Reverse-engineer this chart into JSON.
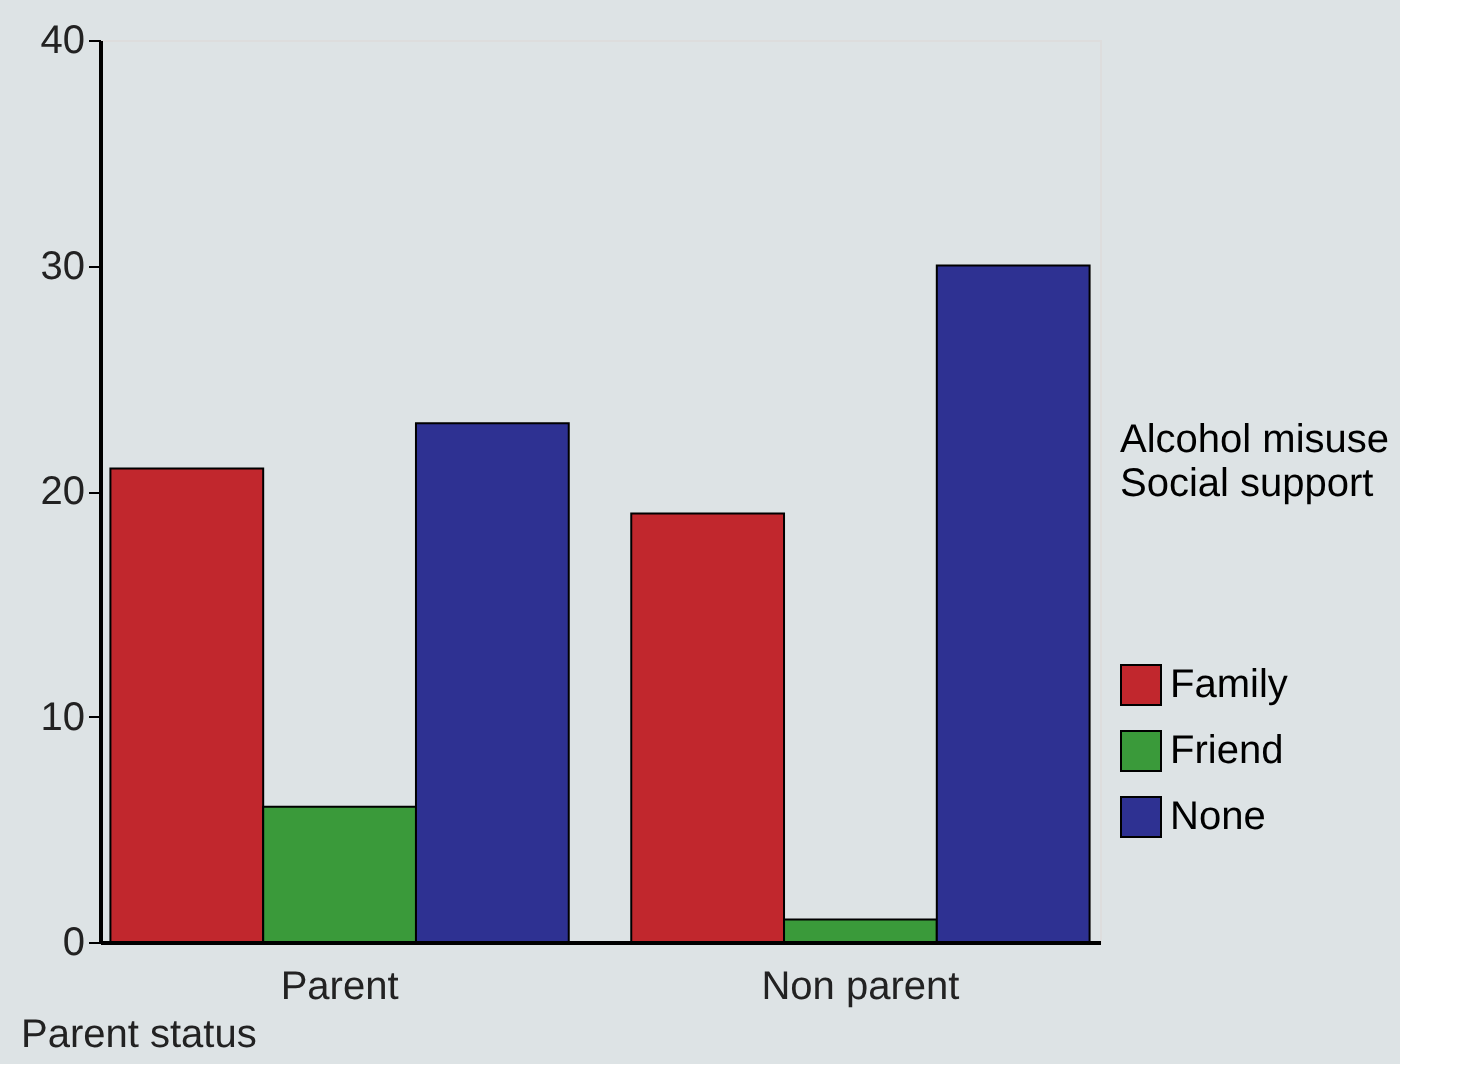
{
  "chart_data": {
    "type": "bar",
    "xlabel": "Parent status",
    "legend_title": "Alcohol misuse\nSocial support",
    "categories": [
      "Parent",
      "Non parent"
    ],
    "series": [
      {
        "name": "Family",
        "color": "#c1272d",
        "values": [
          21,
          19
        ]
      },
      {
        "name": "Friend",
        "color": "#3a9a3a",
        "values": [
          6,
          1
        ]
      },
      {
        "name": "None",
        "color": "#2e3192",
        "values": [
          23,
          30
        ]
      }
    ],
    "ylim": [
      0,
      40
    ],
    "yticks": [
      0,
      10,
      20,
      30,
      40
    ],
    "grid": false,
    "legend": "right"
  }
}
